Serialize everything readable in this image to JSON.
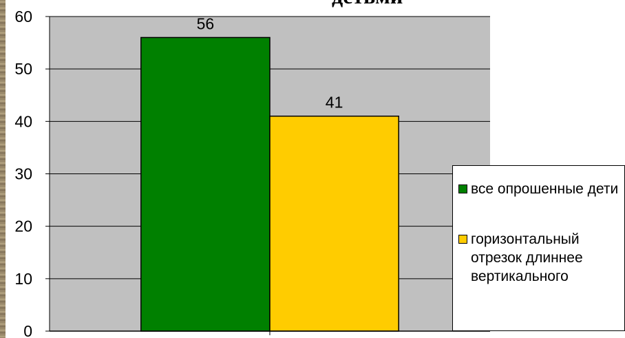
{
  "chart_data": {
    "type": "bar",
    "title": "детьми",
    "categories": [
      "все опрошенные дети",
      "горизонтальный отрезок длиннее вертикального"
    ],
    "values": [
      56,
      41
    ],
    "data_labels": [
      "56",
      "41"
    ],
    "colors": [
      "#008000",
      "#ffcc00"
    ],
    "plot_background": "#c0c0c0",
    "ylim": [
      0,
      60
    ],
    "yticks": [
      "0",
      "10",
      "20",
      "30",
      "40",
      "50",
      "60"
    ],
    "grid": true,
    "legend": {
      "placement": "right",
      "entries": [
        "все опрошенные дети",
        "горизонтальный отрезок длиннее вертикального"
      ]
    },
    "xlabel": "",
    "ylabel": ""
  }
}
